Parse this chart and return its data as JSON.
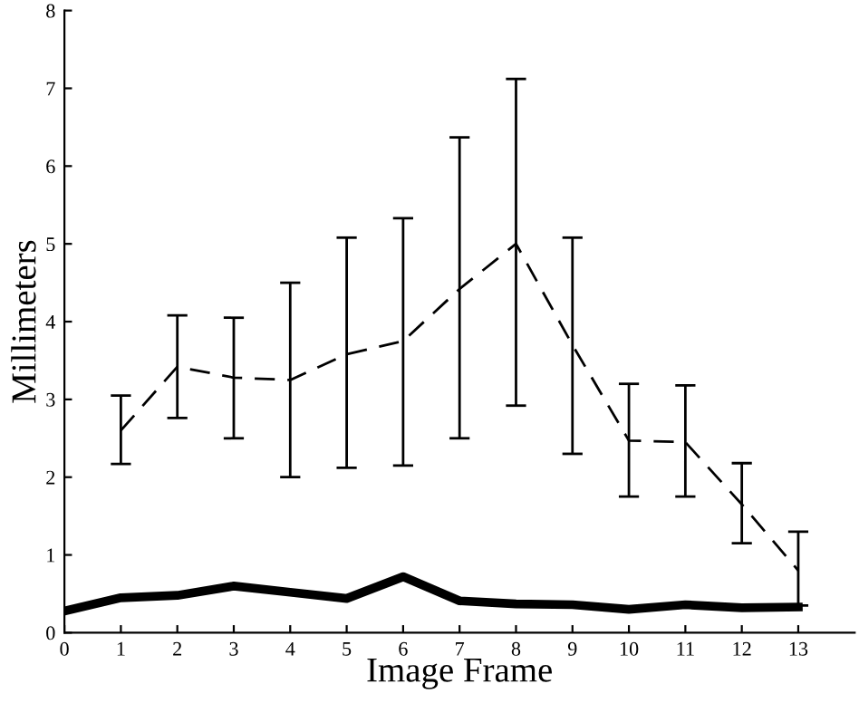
{
  "chart_data": {
    "type": "line",
    "xlabel": "Image Frame",
    "ylabel": "Millimeters",
    "xlim": [
      0,
      14
    ],
    "ylim": [
      0,
      8
    ],
    "xticks": [
      0,
      1,
      2,
      3,
      4,
      5,
      6,
      7,
      8,
      9,
      10,
      11,
      12,
      13
    ],
    "yticks": [
      0,
      1,
      2,
      3,
      4,
      5,
      6,
      7,
      8
    ],
    "grid": false,
    "legend": false,
    "marker": "none",
    "series": [
      {
        "color": "#000000",
        "line_style": "dashed",
        "x": [
          1,
          2,
          3,
          4,
          5,
          6,
          7,
          8,
          9,
          10,
          11,
          12,
          13
        ],
        "values": [
          2.6,
          3.42,
          3.28,
          3.25,
          3.58,
          3.75,
          4.42,
          5.0,
          3.7,
          2.47,
          2.45,
          1.65,
          0.8
        ],
        "errors": [
          [
            2.17,
            3.05
          ],
          [
            2.76,
            4.08
          ],
          [
            2.5,
            4.05
          ],
          [
            2.0,
            4.5
          ],
          [
            2.12,
            5.08
          ],
          [
            2.15,
            5.33
          ],
          [
            2.5,
            6.37
          ],
          [
            2.92,
            7.12
          ],
          [
            2.3,
            5.08
          ],
          [
            1.75,
            3.2
          ],
          [
            1.75,
            3.18
          ],
          [
            1.15,
            2.18
          ],
          [
            0.35,
            1.3
          ]
        ]
      },
      {
        "color": "#000000",
        "line_style": "solid",
        "x": [
          0,
          1,
          2,
          3,
          4,
          5,
          6,
          7,
          8,
          9,
          10,
          11,
          12,
          13
        ],
        "values": [
          0.28,
          0.45,
          0.48,
          0.6,
          0.52,
          0.44,
          0.72,
          0.41,
          0.37,
          0.36,
          0.3,
          0.36,
          0.32,
          0.33
        ]
      }
    ]
  }
}
